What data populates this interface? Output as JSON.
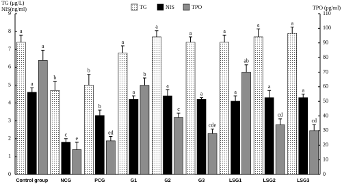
{
  "chart_data": {
    "type": "bar",
    "y_label_lines": [
      "TG (μg/L)",
      "NIS(ng/ml)"
    ],
    "y2_label": "TPO (pg/ml)",
    "categories": [
      "Control group",
      "NCG",
      "PCG",
      "G1",
      "G2",
      "G3",
      "LSG1",
      "LSG2",
      "LSG3"
    ],
    "series": [
      {
        "name": "TG",
        "color": "#ffffff",
        "pattern": "dots",
        "values": [
          7.4,
          4.7,
          5.0,
          6.8,
          7.7,
          7.4,
          7.4,
          7.7,
          7.9
        ],
        "errors": [
          0.4,
          0.5,
          0.6,
          0.4,
          0.35,
          0.3,
          0.4,
          0.45,
          0.35
        ],
        "labels": [
          "a",
          "b",
          "b",
          "a",
          "a",
          "a",
          "a",
          "a",
          "a"
        ]
      },
      {
        "name": "NIS",
        "color": "#000000",
        "values": [
          4.6,
          1.8,
          3.3,
          4.2,
          4.4,
          4.2,
          4.1,
          4.3,
          4.3
        ],
        "errors": [
          0.25,
          0.2,
          0.3,
          0.2,
          0.35,
          0.1,
          0.3,
          0.4,
          0.2
        ],
        "labels": [
          "a",
          "c",
          "b",
          "a",
          "a",
          "a",
          "a",
          "a",
          "a"
        ]
      },
      {
        "name": "TPO",
        "color": "#8c8c8c",
        "axis": "y2",
        "values": [
          78,
          17,
          23,
          61,
          39,
          28,
          70,
          34,
          30
        ],
        "errors": [
          7,
          5,
          3,
          5,
          3,
          3,
          5,
          4,
          4
        ],
        "labels": [
          "a",
          "e",
          "ed",
          "b",
          "c",
          "cde",
          "ab",
          "cd",
          "cd"
        ]
      }
    ],
    "ylim": [
      0,
      9
    ],
    "yticks": [
      0,
      1,
      2,
      3,
      4,
      5,
      6,
      7,
      8,
      9
    ],
    "y2lim": [
      0,
      110
    ],
    "y2ticks": [
      0,
      10,
      20,
      30,
      40,
      50,
      60,
      70,
      80,
      90,
      100,
      110
    ],
    "legend": "top"
  }
}
